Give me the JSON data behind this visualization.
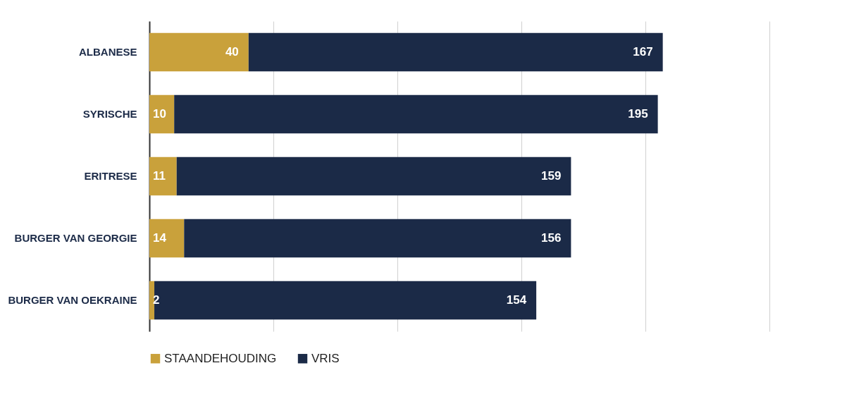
{
  "chart_data": {
    "type": "bar",
    "orientation": "horizontal",
    "stacked": true,
    "categories": [
      "ALBANESE",
      "SYRISCHE",
      "ERITRESE",
      "BURGER VAN GEORGIE",
      "BURGER VAN OEKRAINE"
    ],
    "series": [
      {
        "name": "STAANDEHOUDING",
        "color": "#c9a13b",
        "values": [
          40,
          10,
          11,
          14,
          2
        ]
      },
      {
        "name": "VRIS",
        "color": "#1b2a47",
        "values": [
          167,
          195,
          159,
          156,
          154
        ]
      }
    ],
    "xlim": [
      0,
      250
    ],
    "xticks": [
      {
        "value": 0,
        "label": null
      },
      {
        "value": 50,
        "label": null
      },
      {
        "value": 100,
        "label": null
      },
      {
        "value": 150,
        "label": null
      },
      {
        "value": 200,
        "label": null
      },
      {
        "value": 250,
        "label": null
      }
    ],
    "tick_labels": "y",
    "grid": "x",
    "legend": "bottom",
    "data_labels": true
  }
}
